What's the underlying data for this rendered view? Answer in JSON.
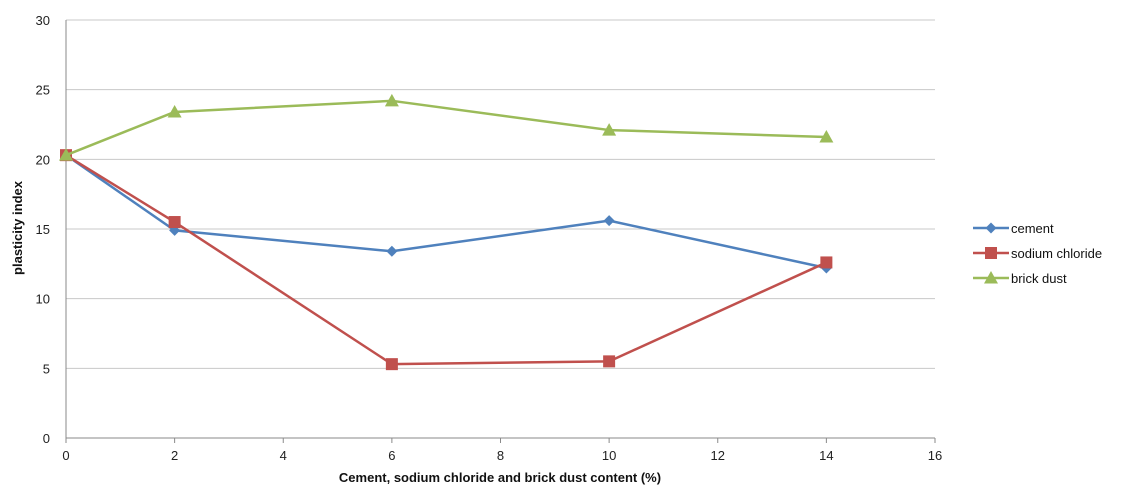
{
  "chart_data": {
    "type": "line",
    "xlabel": "Cement, sodium chloride and brick dust content (%)",
    "ylabel": "plasticity index",
    "xlim": [
      0,
      16
    ],
    "ylim": [
      0,
      30
    ],
    "xticks": [
      0,
      2,
      4,
      6,
      8,
      10,
      12,
      14,
      16
    ],
    "yticks": [
      0,
      5,
      10,
      15,
      20,
      25,
      30
    ],
    "grid": "horizontal",
    "legend_position": "right",
    "series": [
      {
        "name": "cement",
        "color": "#4F81BD",
        "marker": "diamond",
        "x": [
          0,
          2,
          6,
          10,
          14
        ],
        "y": [
          20.3,
          14.9,
          13.4,
          15.6,
          12.2
        ]
      },
      {
        "name": "sodium chloride",
        "color": "#C0504D",
        "marker": "square",
        "x": [
          0,
          2,
          6,
          10,
          14
        ],
        "y": [
          20.3,
          15.5,
          5.3,
          5.5,
          12.6
        ]
      },
      {
        "name": "brick dust",
        "color": "#9BBB59",
        "marker": "triangle",
        "x": [
          0,
          2,
          6,
          10,
          14
        ],
        "y": [
          20.3,
          23.4,
          24.2,
          22.1,
          21.6
        ]
      }
    ]
  }
}
